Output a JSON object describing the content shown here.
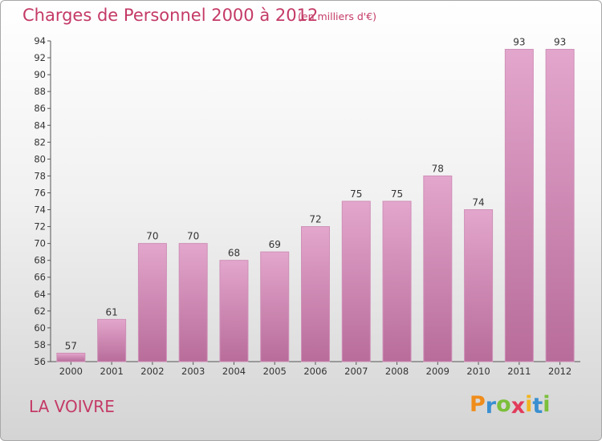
{
  "title": "Charges de Personnel 2000 à 2012",
  "subtitle": "(en milliers d'€)",
  "place": "LA VOIVRE",
  "logo": {
    "letters": [
      "P",
      "r",
      "o",
      "x",
      "i",
      "t",
      "i"
    ],
    "colors": [
      "#f08c1a",
      "#3a8fd0",
      "#7bbf3a",
      "#e23b5b",
      "#f2b51f",
      "#3a8fd0",
      "#7bbf3a"
    ]
  },
  "colors": {
    "bar_top": "#e3a6cc",
    "bar_bottom": "#b86c9a",
    "bar_edge": "#cf90b8",
    "accent": "#c43a66"
  },
  "chart_data": {
    "type": "bar",
    "categories": [
      "2000",
      "2001",
      "2002",
      "2003",
      "2004",
      "2005",
      "2006",
      "2007",
      "2008",
      "2009",
      "2010",
      "2011",
      "2012"
    ],
    "values": [
      57,
      61,
      70,
      70,
      68,
      69,
      72,
      75,
      75,
      78,
      74,
      93,
      93
    ],
    "ylim": [
      56,
      94
    ],
    "yticks": [
      56,
      58,
      60,
      62,
      64,
      66,
      68,
      70,
      72,
      74,
      76,
      78,
      80,
      82,
      84,
      86,
      88,
      90,
      92,
      94
    ],
    "data_labels": [
      "57",
      "61",
      "70",
      "70",
      "68",
      "69",
      "72",
      "75",
      "75",
      "78",
      "74",
      "93",
      "93"
    ],
    "grid": false,
    "legend": "none"
  }
}
